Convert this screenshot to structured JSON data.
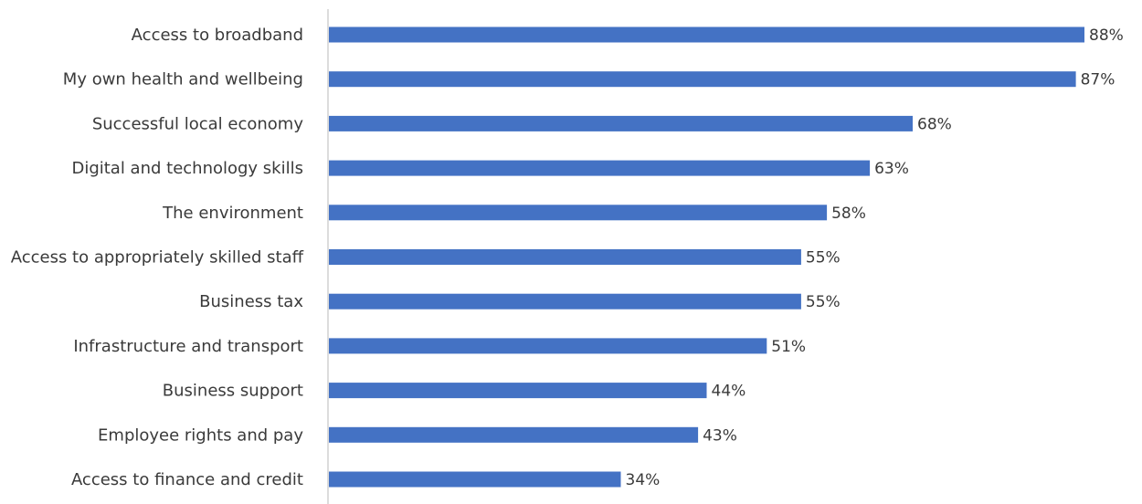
{
  "chart_data": {
    "type": "bar",
    "orientation": "horizontal",
    "categories": [
      "Access to broadband",
      "My own health and wellbeing",
      "Successful local economy",
      "Digital and technology skills",
      "The environment",
      "Access to appropriately skilled staff",
      "Business tax",
      "Infrastructure and transport",
      "Business support",
      "Employee rights and pay",
      "Access to finance and credit"
    ],
    "values": [
      88,
      87,
      68,
      63,
      58,
      55,
      55,
      51,
      44,
      43,
      34
    ],
    "value_labels": [
      "88%",
      "87%",
      "68%",
      "63%",
      "58%",
      "55%",
      "55%",
      "51%",
      "44%",
      "43%",
      "34%"
    ],
    "title": "",
    "xlabel": "",
    "ylabel": "",
    "xlim": [
      0,
      88
    ],
    "grid": false,
    "legend": "none",
    "bar_color": "#4472C4"
  }
}
